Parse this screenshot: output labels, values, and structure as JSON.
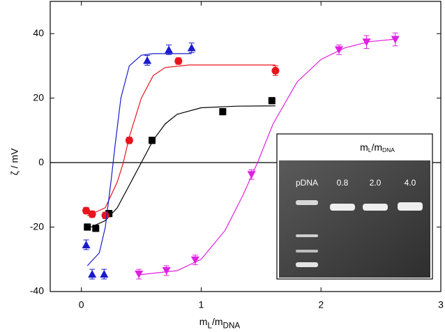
{
  "chart_data": {
    "type": "scatter",
    "ylabel": "ζ / mV",
    "xlabel": [
      {
        "text": "m"
      },
      {
        "text": "L",
        "sub": true
      },
      {
        "text": "/m"
      },
      {
        "text": "DNA",
        "sub": true
      }
    ],
    "xlim": [
      -0.26,
      3
    ],
    "xticks": [
      0,
      1,
      2,
      3
    ],
    "ylim": [
      -40,
      50
    ],
    "yticks": [
      -40,
      -20,
      0,
      20,
      40
    ],
    "zero_line": true,
    "series": [
      {
        "color": "#000000",
        "marker": "square",
        "x": [
          0.05,
          0.12,
          0.23,
          0.59,
          1.18,
          1.59
        ],
        "values": [
          -20,
          -20.4,
          -15.8,
          6.9,
          15.8,
          19.2
        ],
        "errors": [
          1,
          1,
          1,
          1,
          1,
          1
        ],
        "fit": {
          "x": [
            0.05,
            0.2,
            0.3,
            0.4,
            0.5,
            0.6,
            0.7,
            0.8,
            1.0,
            1.3,
            1.62
          ],
          "y": [
            -20.5,
            -18,
            -14,
            -7,
            0,
            7,
            12,
            15,
            17,
            17.5,
            17.6
          ]
        }
      },
      {
        "color": "#e8141c",
        "marker": "circle",
        "x": [
          0.04,
          0.09,
          0.2,
          0.4,
          0.81,
          1.62
        ],
        "values": [
          -14.9,
          -16,
          -16.4,
          6.9,
          31.5,
          28.5
        ],
        "errors": [
          1,
          1,
          1,
          1,
          1,
          1.5
        ],
        "fit": {
          "x": [
            0.05,
            0.2,
            0.3,
            0.35,
            0.4,
            0.5,
            0.6,
            0.7,
            0.9,
            1.62
          ],
          "y": [
            -16.5,
            -14,
            -6,
            0,
            8,
            20,
            27,
            29.5,
            30.3,
            30.3
          ]
        }
      },
      {
        "color": "#1a1acc",
        "marker": "triangle-up",
        "x": [
          0.04,
          0.09,
          0.19,
          0.55,
          0.73,
          0.92
        ],
        "values": [
          -25.5,
          -34.6,
          -34.6,
          31.7,
          35,
          35.6
        ],
        "errors": [
          1.5,
          1.5,
          1.5,
          1.5,
          1.5,
          1.5
        ],
        "fit": {
          "x": [
            0.05,
            0.15,
            0.2,
            0.25,
            0.28,
            0.33,
            0.4,
            0.5,
            0.6,
            0.92
          ],
          "y": [
            -32,
            -28,
            -20,
            -5,
            5,
            20,
            30,
            33.3,
            33.8,
            33.8
          ]
        }
      },
      {
        "color": "#e020e0",
        "marker": "triangle-down",
        "x": [
          0.48,
          0.71,
          0.95,
          1.42,
          2.15,
          2.38,
          2.62
        ],
        "values": [
          -34.6,
          -33.5,
          -30.2,
          -3.7,
          35,
          37.4,
          38.2
        ],
        "errors": [
          1.5,
          1.5,
          1.5,
          1.5,
          1.5,
          2,
          2
        ],
        "fit": {
          "x": [
            0.48,
            0.8,
            1.0,
            1.2,
            1.35,
            1.47,
            1.6,
            1.8,
            2.0,
            2.2,
            2.4,
            2.62
          ],
          "y": [
            -34.8,
            -33.5,
            -30,
            -21,
            -10,
            0,
            12,
            25,
            32,
            35.6,
            37.5,
            38.3
          ]
        }
      }
    ],
    "inset": {
      "title": [
        {
          "text": "m"
        },
        {
          "text": "L",
          "sub": true
        },
        {
          "text": "/m"
        },
        {
          "text": "DNA",
          "sub": true
        }
      ],
      "lanes": [
        "pDNA",
        "0.8",
        "2.0",
        "4.0"
      ]
    }
  }
}
